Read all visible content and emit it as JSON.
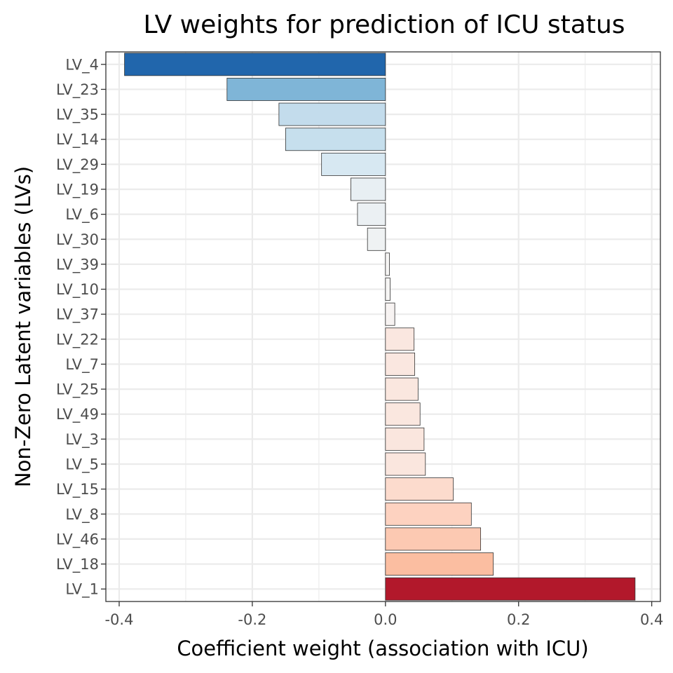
{
  "chart_data": {
    "type": "bar",
    "orientation": "horizontal",
    "title": "LV weights for prediction of ICU status",
    "xlabel": "Coefficient weight (association with ICU)",
    "ylabel": "Non-Zero Latent variables (LVs)",
    "xlim": [
      -0.42,
      0.413
    ],
    "x_ticks": [
      -0.4,
      -0.2,
      0.0,
      0.2,
      0.4
    ],
    "x_tick_labels": [
      "-0.4",
      "-0.2",
      "0.0",
      "0.2",
      "0.4"
    ],
    "grid": true,
    "legend": "none",
    "categories": [
      "LV_4",
      "LV_23",
      "LV_35",
      "LV_14",
      "LV_29",
      "LV_19",
      "LV_6",
      "LV_30",
      "LV_39",
      "LV_10",
      "LV_37",
      "LV_22",
      "LV_7",
      "LV_25",
      "LV_49",
      "LV_3",
      "LV_5",
      "LV_15",
      "LV_8",
      "LV_46",
      "LV_18",
      "LV_1"
    ],
    "values": [
      -0.392,
      -0.238,
      -0.16,
      -0.15,
      -0.096,
      -0.052,
      -0.042,
      -0.027,
      0.006,
      0.007,
      0.014,
      0.043,
      0.044,
      0.049,
      0.052,
      0.058,
      0.06,
      0.102,
      0.129,
      0.143,
      0.162,
      0.375
    ],
    "colors": [
      "#2166ac",
      "#7fb5d7",
      "#c3dcec",
      "#c6dfed",
      "#d7e8f2",
      "#e8eff3",
      "#ebf0f3",
      "#eff2f3",
      "#f6f5f4",
      "#f6f5f4",
      "#f7f3f2",
      "#fae7e0",
      "#fae7e0",
      "#fae7df",
      "#fae7df",
      "#fae6de",
      "#fae6de",
      "#fcdbcd",
      "#fdd2c0",
      "#fcc9b2",
      "#fbbea1",
      "#b2182b"
    ]
  }
}
